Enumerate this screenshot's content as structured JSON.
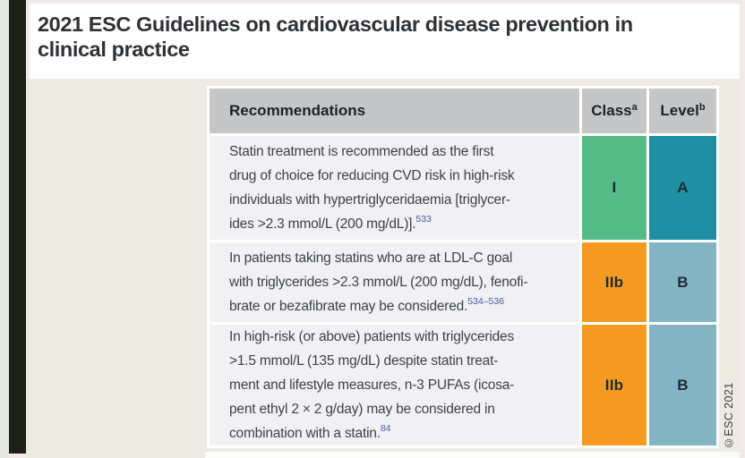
{
  "page": {
    "title_line1": "2021 ESC Guidelines on cardiovascular disease prevention in",
    "title_line2": "clinical practice",
    "copyright": "©ESC 2021"
  },
  "colors": {
    "class_I_green": "#55bc87",
    "class_IIb_orange": "#f59b21",
    "level_A_teal": "#1f8fa4",
    "level_B_blue": "#85b5c5",
    "header_gray": "#c5c6c8",
    "row_bg": "#f1f0f2",
    "reference_blue": "#4f58a0",
    "accent_stripe": "#1d2114"
  },
  "table": {
    "headers": {
      "recommendations": "Recommendations",
      "class_label": "Class",
      "class_sup": "a",
      "level_label": "Level",
      "level_sup": "b"
    },
    "rows": [
      {
        "lines": [
          "Statin treatment is recommended as the first",
          "drug of choice for reducing CVD risk in high-risk",
          "individuals with hypertriglyceridaemia [triglycer-",
          "ides >2.3 mmol/L (200 mg/dL)]."
        ],
        "ref": "533",
        "class": "I",
        "class_color": "#55bc87",
        "level": "A",
        "level_color": "#1f8fa4"
      },
      {
        "lines": [
          "In patients taking statins who are at LDL-C goal",
          "with triglycerides >2.3 mmol/L (200 mg/dL), fenofi-",
          "brate or bezafibrate may be considered."
        ],
        "ref": "534–536",
        "class": "IIb",
        "class_color": "#f59b21",
        "level": "B",
        "level_color": "#85b5c5"
      },
      {
        "lines": [
          "In high-risk (or above) patients with triglycerides",
          ">1.5 mmol/L (135 mg/dL) despite statin treat-",
          "ment and lifestyle measures, n-3 PUFAs (icosa-",
          "pent ethyl 2 × 2 g/day) may be considered in",
          "combination with a statin."
        ],
        "ref": "84",
        "class": "IIb",
        "class_color": "#f59b21",
        "level": "B",
        "level_color": "#85b5c5"
      }
    ]
  }
}
